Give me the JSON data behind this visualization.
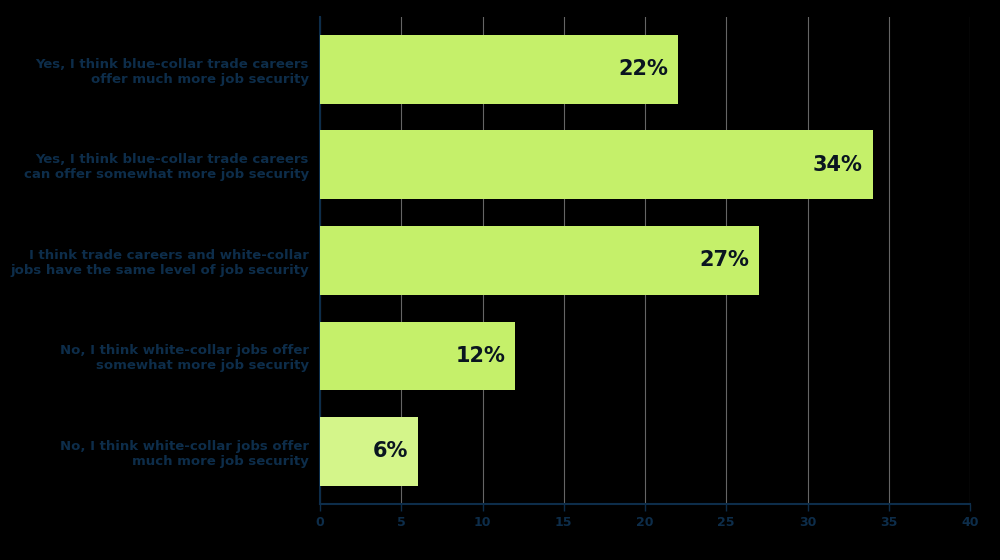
{
  "categories": [
    "Yes, I think blue-collar trade careers\noffer much more job security",
    "Yes, I think blue-collar trade careers\ncan offer somewhat more job security",
    "I think trade careers and white-collar\njobs have the same level of job security",
    "No, I think white-collar jobs offer\nsomewhat more job security",
    "No, I think white-collar jobs offer\nmuch more job security"
  ],
  "values": [
    22,
    34,
    27,
    12,
    6
  ],
  "bar_colors": [
    "#c5f06a",
    "#c5f06a",
    "#c5f06a",
    "#c5f06a",
    "#d4f58a"
  ],
  "value_labels": [
    "22%",
    "34%",
    "27%",
    "12%",
    "6%"
  ],
  "background_color": "#000000",
  "label_area_color": "#0a1520",
  "bar_label_color": "#0a1520",
  "axis_label_color": "#0d2d4a",
  "tick_label_color": "#0d2d4a",
  "gridline_color": "#aaaaaa",
  "xlim": [
    0,
    40
  ],
  "xticks": [
    0,
    5,
    10,
    15,
    20,
    25,
    30,
    35,
    40
  ],
  "label_fontsize": 9.5,
  "value_fontsize": 15,
  "tick_fontsize": 9,
  "bar_height": 0.72
}
